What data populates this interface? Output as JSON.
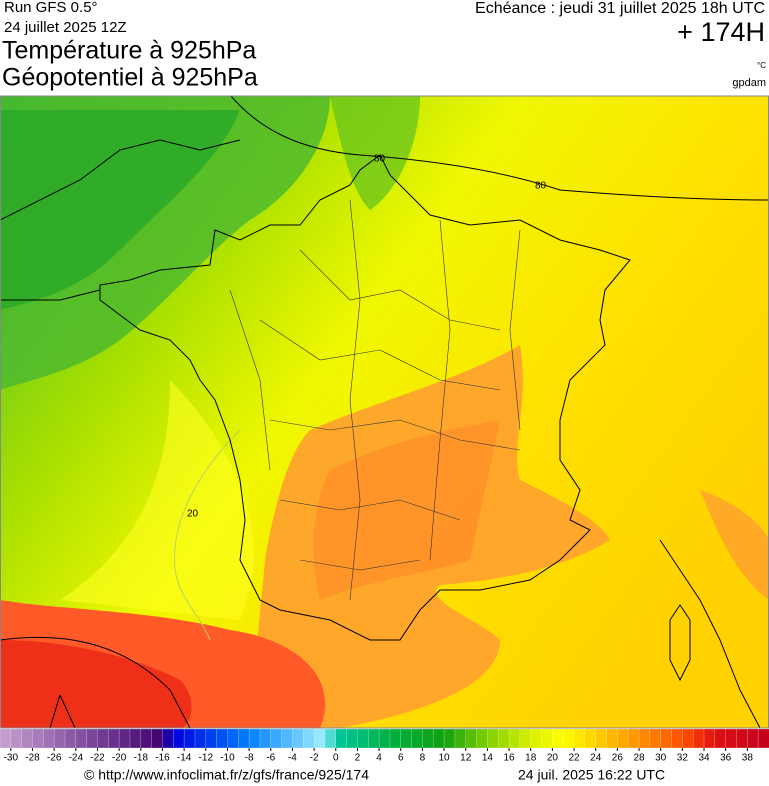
{
  "header": {
    "run": "Run GFS 0.5°",
    "date": "24 juillet 2025 12Z",
    "title1": "Température à 925hPa",
    "title2": "Géopotentiel à 925hPa",
    "echeance": "Echéance : jeudi 31 juillet 2025 18h UTC",
    "lead": "+ 174H",
    "unit": "°C",
    "brand": "gpdam"
  },
  "map": {
    "contour_labels": [
      "80",
      "80",
      "20"
    ]
  },
  "legend": {
    "range": [
      -31,
      40
    ],
    "ticks": [
      -30,
      -28,
      -26,
      -24,
      -22,
      -20,
      -18,
      -16,
      -14,
      -12,
      -10,
      -8,
      -6,
      -4,
      -2,
      0,
      2,
      4,
      6,
      8,
      10,
      12,
      14,
      16,
      18,
      20,
      22,
      24,
      26,
      28,
      30,
      32,
      34,
      36,
      38
    ],
    "color_stops": [
      [
        -31,
        "#c8a0d0"
      ],
      [
        -16,
        "#400070"
      ],
      [
        -15,
        "#0000e0"
      ],
      [
        -8,
        "#0080ff"
      ],
      [
        -1,
        "#a0f0ff"
      ],
      [
        0,
        "#00c8a0"
      ],
      [
        5,
        "#00b040"
      ],
      [
        10,
        "#10a010"
      ],
      [
        14,
        "#80d000"
      ],
      [
        18,
        "#d8f000"
      ],
      [
        21,
        "#ffff00"
      ],
      [
        24,
        "#ffd000"
      ],
      [
        28,
        "#ff9000"
      ],
      [
        32,
        "#ff5000"
      ],
      [
        35,
        "#e01010"
      ],
      [
        40,
        "#c00020"
      ]
    ]
  },
  "footer": {
    "url": "© http://www.infoclimat.fr/z/gfs/france/925/174",
    "generated": "24 juil. 2025 16:22 UTC"
  }
}
